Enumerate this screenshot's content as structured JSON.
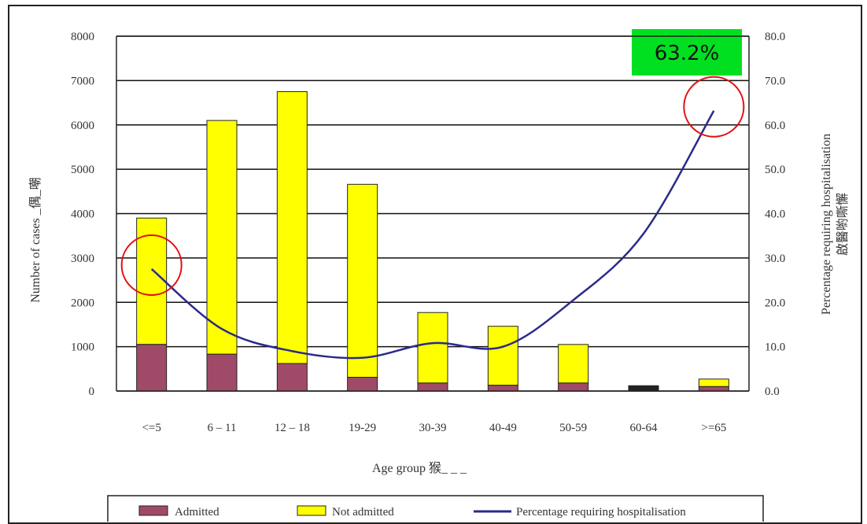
{
  "chart_data": {
    "type": "bar",
    "stacked": true,
    "categories": [
      "<=5",
      "6 – 11",
      "12 – 18",
      "19-29",
      "30-39",
      "40-49",
      "50-59",
      "60-64",
      ">=65"
    ],
    "series": [
      {
        "name": "Admitted",
        "type": "bar",
        "axis": "left",
        "color": "#a04a6a",
        "values": [
          1050,
          830,
          620,
          310,
          180,
          130,
          180,
          110,
          100
        ]
      },
      {
        "name": "Not admitted",
        "type": "bar",
        "axis": "left",
        "color": "#ffff00",
        "values": [
          2850,
          5270,
          6130,
          4350,
          1590,
          1330,
          870,
          10,
          170
        ]
      },
      {
        "name": "Percentage requiring hospitalisation",
        "type": "line",
        "axis": "right",
        "color": "#2a2a8a",
        "values": [
          27.5,
          14.0,
          9.0,
          7.5,
          10.8,
          10.0,
          20.5,
          35.5,
          63.2
        ]
      }
    ],
    "ylim_left": [
      0,
      8000
    ],
    "yticks_left": [
      "0",
      "1000",
      "2000",
      "3000",
      "4000",
      "5000",
      "6000",
      "7000",
      "8000"
    ],
    "ylim_right": [
      0,
      80
    ],
    "yticks_right": [
      "0.0",
      "10.0",
      "20.0",
      "30.0",
      "40.0",
      "50.0",
      "60.0",
      "70.0",
      "80.0"
    ],
    "xlabel": "Age group 猴_ _ _",
    "ylabel_left": "Number of cases _偶_嘲",
    "ylabel_right": "Percentage requiring hospitalisation",
    "ylabel_right_2": "啟醫喲嘶懈",
    "annotation": "63.2%",
    "highlight_circles": [
      "<=5",
      ">=65"
    ],
    "grid": true,
    "legend_position": "bottom"
  }
}
